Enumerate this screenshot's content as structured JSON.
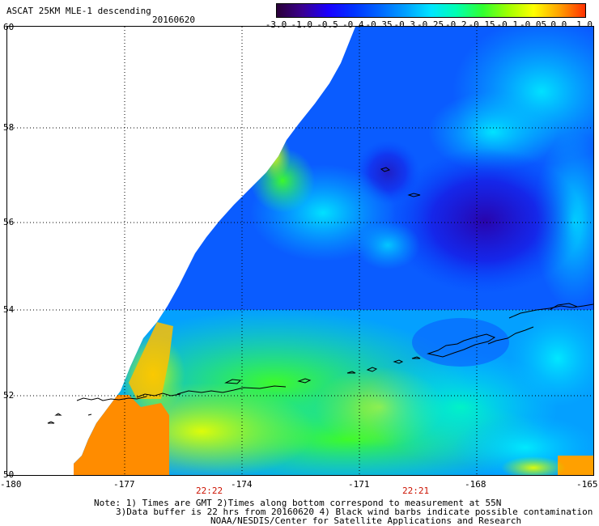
{
  "title": "ASCAT 25KM MLE-1 descending",
  "date": "20160620",
  "colorbar": {
    "labels": [
      "-3.0",
      "-1.0",
      "-0.5",
      "-0.4",
      "-0.35",
      "-0.3",
      "-0.25",
      "-0.2",
      "-0.15",
      "-0.1",
      "-0.05",
      "0.0",
      "1.0"
    ],
    "colors": [
      "#2a0038",
      "#3a0090",
      "#1a00ff",
      "#0033ff",
      "#0066ff",
      "#00a0ff",
      "#00e5ff",
      "#00ffb0",
      "#30ff30",
      "#a0ff00",
      "#ffff00",
      "#ffa000",
      "#ff3000"
    ]
  },
  "axes": {
    "lat_labels": [
      "60",
      "58",
      "56",
      "54",
      "52",
      "50"
    ],
    "lon_labels": [
      "-180",
      "-177",
      "-174",
      "-171",
      "-168",
      "-165"
    ]
  },
  "times": [
    "22:22",
    "22:21"
  ],
  "notes": [
    "Note: 1) Times are GMT 2)Times along bottom correspond to measurement at 55N",
    "3)Data buffer is 22 hrs from 20160620 4) Black wind barbs indicate possible contamination",
    "NOAA/NESDIS/Center for Satellite Applications and Research"
  ]
}
